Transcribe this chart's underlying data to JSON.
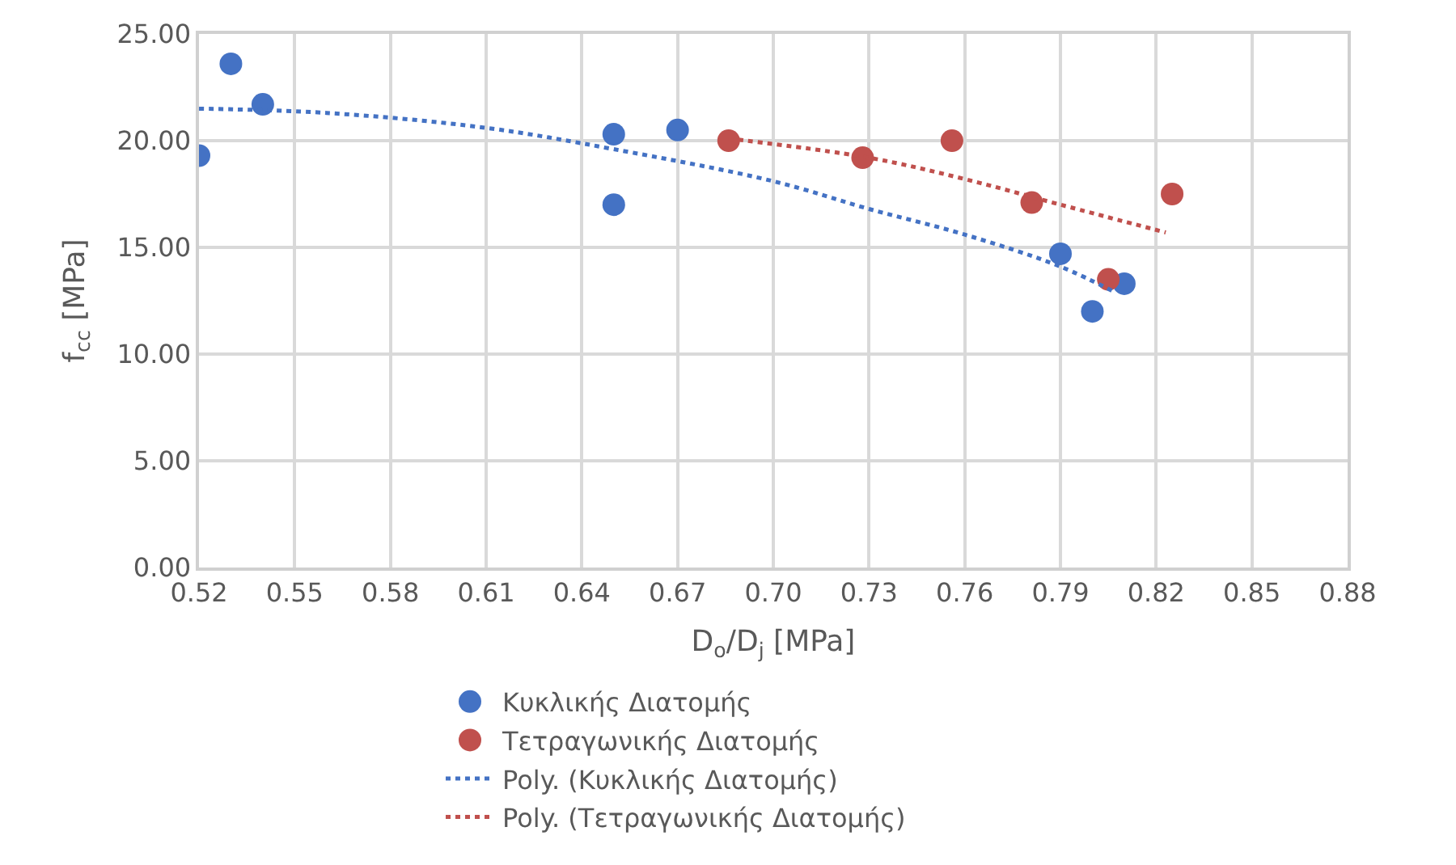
{
  "chart_data": {
    "type": "scatter",
    "xlabel": "D$_{o}$/D$_{j}$ [MPa]",
    "ylabel": "f$_{cc}$ [MPa]",
    "xlim": [
      0.52,
      0.88
    ],
    "ylim": [
      0,
      25
    ],
    "xticks": [
      0.52,
      0.55,
      0.58,
      0.61,
      0.64,
      0.67,
      {
        "value": 0.7,
        "label": "0.70"
      },
      0.73,
      0.76,
      0.79,
      0.82,
      0.85,
      0.88
    ],
    "yticks": [
      {
        "value": 0,
        "label": "0.00"
      },
      {
        "value": 5,
        "label": "5.00"
      },
      {
        "value": 10,
        "label": "10.00"
      },
      {
        "value": 15,
        "label": "15.00"
      },
      {
        "value": 20,
        "label": "20.00"
      },
      {
        "value": 25,
        "label": "25.00"
      }
    ],
    "grid": true,
    "legend": "bottom",
    "marker": "circle",
    "series": [
      {
        "name": "Κυκλικής Διατομής",
        "color": "#4472c4",
        "x": [
          0.52,
          0.53,
          0.54,
          0.65,
          0.65,
          0.67,
          0.79,
          0.8,
          0.81
        ],
        "values": [
          19.3,
          23.6,
          21.7,
          20.3,
          17.0,
          20.5,
          14.7,
          12.0,
          13.3
        ]
      },
      {
        "name": "Τετραγωνικής Διατομής",
        "color": "#c0504d",
        "x": [
          0.686,
          0.728,
          0.756,
          0.781,
          0.805,
          0.825
        ],
        "values": [
          20.0,
          19.2,
          20.0,
          17.1,
          13.5,
          17.5
        ]
      },
      {
        "name": "Poly. (Κυκλικής Διατομής)",
        "type": "line",
        "marker": "none",
        "line_style": "dotted",
        "color": "#4472c4",
        "x": [
          0.52,
          0.56,
          0.61,
          0.65,
          0.7,
          0.73,
          0.76,
          0.79,
          0.807
        ],
        "values": [
          21.5,
          21.3,
          20.6,
          19.6,
          18.1,
          16.8,
          15.6,
          14.1,
          12.9
        ]
      },
      {
        "name": "Poly. (Τετραγωνικής Διατομής)",
        "type": "line",
        "marker": "none",
        "line_style": "dotted",
        "color": "#c0504d",
        "x": [
          0.686,
          0.73,
          0.76,
          0.79,
          0.823
        ],
        "values": [
          20.1,
          19.2,
          18.2,
          17.0,
          15.7
        ]
      }
    ]
  }
}
